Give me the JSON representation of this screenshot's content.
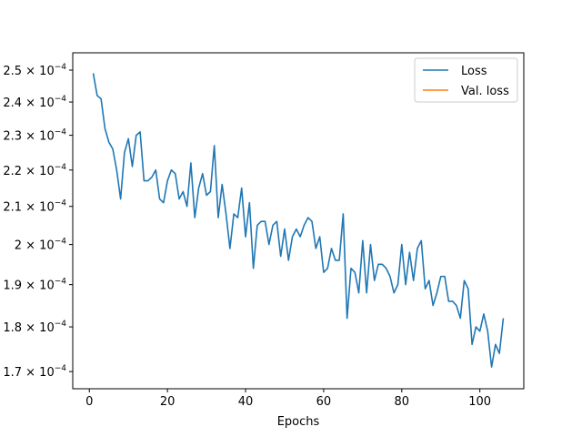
{
  "chart_data": {
    "type": "line",
    "title": "",
    "xlabel": "Epochs",
    "ylabel": "",
    "yscale": "log",
    "xlim": [
      -4.25,
      111.25
    ],
    "ylim": [
      0.0001663,
      0.0002556
    ],
    "grid": false,
    "legend_position": "top-right",
    "x_ticks": [
      0,
      20,
      40,
      60,
      80,
      100
    ],
    "x_tick_labels": [
      "0",
      "20",
      "40",
      "60",
      "80",
      "100"
    ],
    "y_ticks": [
      0.00017,
      0.00018,
      0.00019,
      0.0002,
      0.00021,
      0.00022,
      0.00023,
      0.00024,
      0.00025
    ],
    "y_tick_labels": [
      {
        "mantissa": "1.7",
        "base": "10",
        "exp": "−4"
      },
      {
        "mantissa": "1.8",
        "base": "10",
        "exp": "−4"
      },
      {
        "mantissa": "1.9",
        "base": "10",
        "exp": "−4"
      },
      {
        "mantissa": "",
        "prefix": "2",
        "base": "10",
        "exp": "−4"
      },
      {
        "mantissa": "2.1",
        "base": "10",
        "exp": "−4"
      },
      {
        "mantissa": "2.2",
        "base": "10",
        "exp": "−4"
      },
      {
        "mantissa": "2.3",
        "base": "10",
        "exp": "−4"
      },
      {
        "mantissa": "2.4",
        "base": "10",
        "exp": "−4"
      },
      {
        "mantissa": "2.5",
        "base": "10",
        "exp": "−4"
      }
    ],
    "series": [
      {
        "name": "Loss",
        "color": "#1f77b4",
        "x": [
          1,
          2,
          3,
          4,
          5,
          6,
          7,
          8,
          9,
          10,
          11,
          12,
          13,
          14,
          15,
          16,
          17,
          18,
          19,
          20,
          21,
          22,
          23,
          24,
          25,
          26,
          27,
          28,
          29,
          30,
          31,
          32,
          33,
          34,
          35,
          36,
          37,
          38,
          39,
          40,
          41,
          42,
          43,
          44,
          45,
          46,
          47,
          48,
          49,
          50,
          51,
          52,
          53,
          54,
          55,
          56,
          57,
          58,
          59,
          60,
          61,
          62,
          63,
          64,
          65,
          66,
          67,
          68,
          69,
          70,
          71,
          72,
          73,
          74,
          75,
          76,
          77,
          78,
          79,
          80,
          81,
          82,
          83,
          84,
          85,
          86,
          87,
          88,
          89,
          90,
          91,
          92,
          93,
          94,
          95,
          96,
          97,
          98,
          99,
          100,
          101,
          102,
          103,
          104,
          105,
          106
        ],
        "values": [
          0.000249,
          0.000242,
          0.000241,
          0.000232,
          0.000228,
          0.000226,
          0.00022,
          0.000212,
          0.000225,
          0.000229,
          0.000221,
          0.00023,
          0.000231,
          0.000217,
          0.000217,
          0.000218,
          0.00022,
          0.000212,
          0.000211,
          0.000217,
          0.00022,
          0.000219,
          0.000212,
          0.000214,
          0.00021,
          0.000222,
          0.000207,
          0.000215,
          0.000219,
          0.000213,
          0.000214,
          0.000227,
          0.000207,
          0.000216,
          0.000208,
          0.000199,
          0.000208,
          0.000207,
          0.000215,
          0.000202,
          0.000211,
          0.000194,
          0.000205,
          0.000206,
          0.000206,
          0.0002,
          0.000205,
          0.000206,
          0.000197,
          0.000204,
          0.000196,
          0.000202,
          0.000204,
          0.000202,
          0.000205,
          0.000207,
          0.000206,
          0.000199,
          0.000202,
          0.000193,
          0.000194,
          0.000199,
          0.000196,
          0.000196,
          0.000208,
          0.000182,
          0.000194,
          0.000193,
          0.000188,
          0.000201,
          0.000188,
          0.0002,
          0.000191,
          0.000195,
          0.000195,
          0.000194,
          0.000192,
          0.000188,
          0.00019,
          0.0002,
          0.00019,
          0.000198,
          0.000191,
          0.000199,
          0.000201,
          0.000189,
          0.000191,
          0.000185,
          0.000188,
          0.000192,
          0.000192,
          0.000186,
          0.000186,
          0.000185,
          0.000182,
          0.000191,
          0.000189,
          0.000176,
          0.00018,
          0.000179,
          0.000183,
          0.000179,
          0.000171,
          0.000176,
          0.000174,
          0.000182
        ]
      },
      {
        "name": "Val. loss",
        "color": "#ff7f0e",
        "x": [],
        "values": []
      }
    ]
  }
}
